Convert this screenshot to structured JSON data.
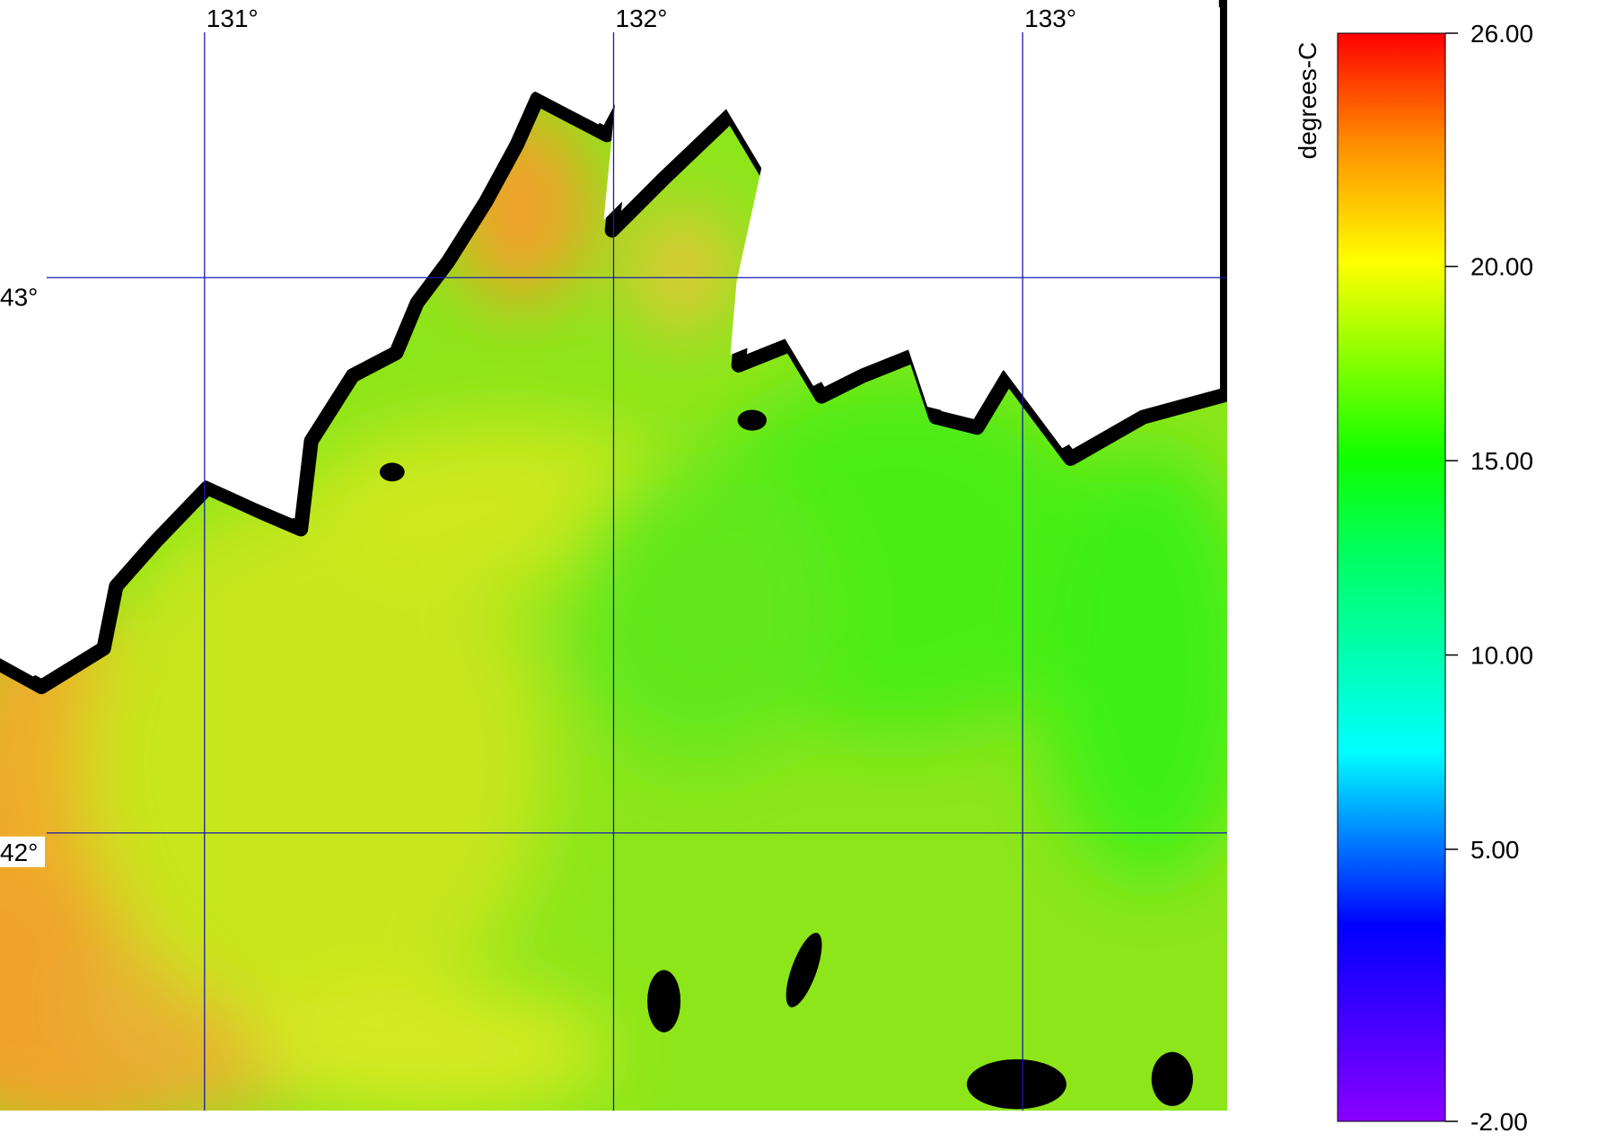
{
  "map": {
    "lon_range": [
      130.5,
      133.5
    ],
    "lat_range": [
      41.5,
      43.5
    ],
    "lon_lines": [
      {
        "value": 131,
        "label": "131°"
      },
      {
        "value": 132,
        "label": "132°"
      },
      {
        "value": 133,
        "label": "133°"
      }
    ],
    "lat_lines": [
      {
        "value": 43,
        "label": "43°"
      },
      {
        "value": 42,
        "label": "42°"
      }
    ],
    "colorbar": {
      "label": "degrees-C",
      "range": [
        -2,
        26
      ],
      "ticks": [
        {
          "value": 26,
          "label": "26.00"
        },
        {
          "value": 20,
          "label": "20.00"
        },
        {
          "value": 15,
          "label": "15.00"
        },
        {
          "value": 10,
          "label": "10.00"
        },
        {
          "value": 5,
          "label": "5.00"
        },
        {
          "value": -2,
          "label": "-2.00"
        }
      ]
    }
  }
}
